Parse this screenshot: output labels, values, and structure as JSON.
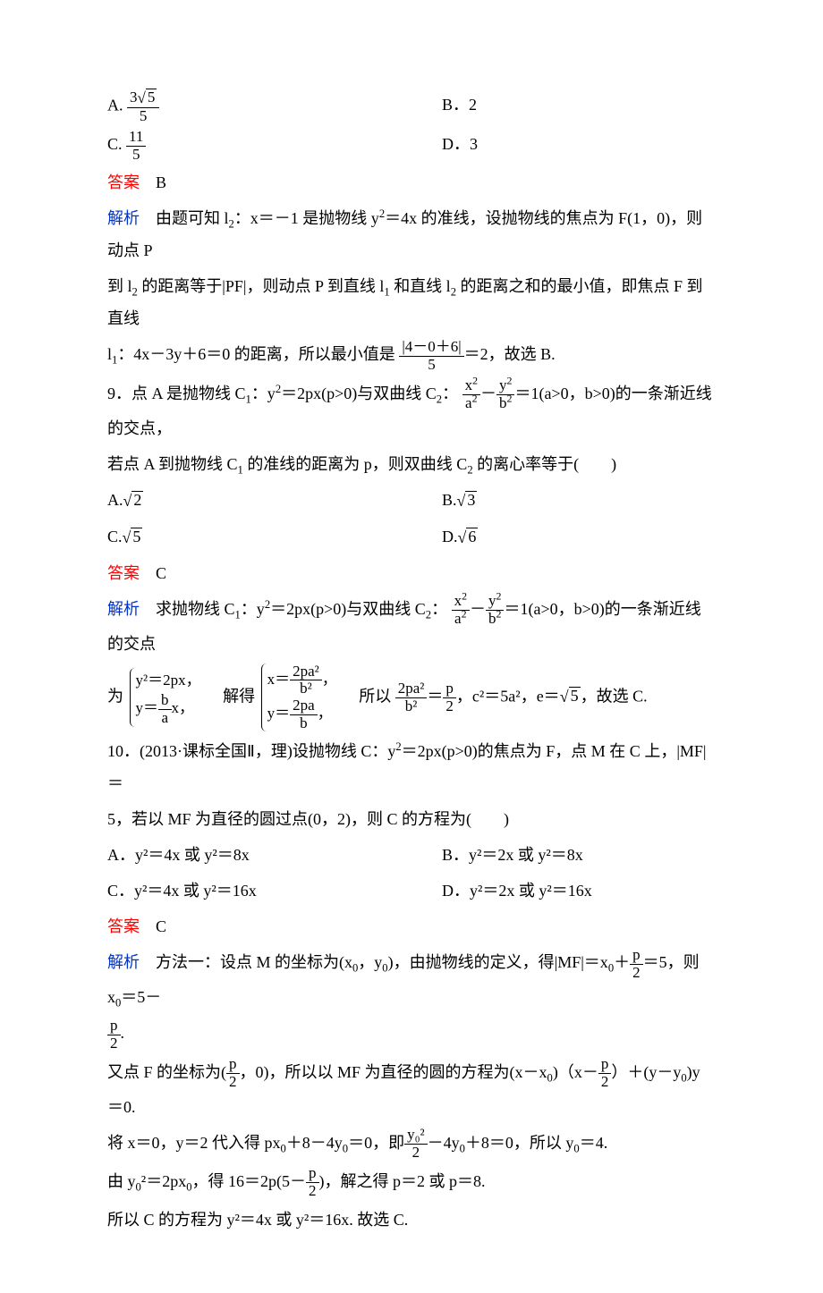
{
  "q8": {
    "opts": {
      "A_pre": "A.",
      "A_num_a": "3",
      "A_num_b": "5",
      "A_den": "5",
      "B": "B．2",
      "C_pre": "C.",
      "C_num": "11",
      "C_den": "5",
      "D": "D．3"
    },
    "ans_label": "答案",
    "ans": "B",
    "ana_label": "解析",
    "ana_p1a": "由题可知 l",
    "ana_p1b": "：x＝－1 是抛物线 y",
    "ana_p1c": "＝4x 的准线，设抛物线的焦点为 F(1，0)，则动点 P",
    "ana_p2a": "到 l",
    "ana_p2b": " 的距离等于|PF|，则动点 P 到直线 l",
    "ana_p2c": " 和直线 l",
    "ana_p2d": " 的距离之和的最小值，即焦点 F 到直线",
    "ana_p3a": "l",
    "ana_p3b": "：4x－3y＋6＝0 的距离，所以最小值是",
    "ana_frac_num": "|4－0＋6|",
    "ana_frac_den": "5",
    "ana_p3c": "＝2，故选 B."
  },
  "q9": {
    "stem_a": "9．点 A 是抛物线 C",
    "stem_b": "：y",
    "stem_c": "＝2px(p>0)与双曲线 C",
    "stem_d": "：",
    "h_xn": "x",
    "h_xd": "a",
    "h_yn": "y",
    "h_yd": "b",
    "stem_e": "＝1(a>0，b>0)的一条渐近线的交点，",
    "stem2a": "若点 A 到抛物线 C",
    "stem2b": " 的准线的距离为 p，则双曲线 C",
    "stem2c": " 的离心率等于(　　)",
    "opts": {
      "A_pre": "A.",
      "A_v": "2",
      "B_pre": "B.",
      "B_v": "3",
      "C_pre": "C.",
      "C_v": "5",
      "D_pre": "D.",
      "D_v": "6"
    },
    "ans_label": "答案",
    "ans": "C",
    "ana_label": "解析",
    "ana_p1a": "求抛物线 C",
    "ana_p1b": "：y",
    "ana_p1c": "＝2px(p>0)与双曲线 C",
    "ana_p1d": "：",
    "ana_p1e": "＝1(a>0，b>0)的一条渐近线的交点",
    "ana_p2_pre": "为",
    "brace1_l1": "y²＝2px，",
    "brace1_l2_a": "y＝",
    "brace1_l2_num": "b",
    "brace1_l2_den": "a",
    "brace1_l2_b": "x，",
    "ana_p2_mid": "解得",
    "brace2_l1_a": "x＝",
    "brace2_l1_num": "2pa²",
    "brace2_l1_den": "b²",
    "brace2_l1_b": "，",
    "brace2_l2_a": "y＝",
    "brace2_l2_num": "2pa",
    "brace2_l2_den": "b",
    "brace2_l2_b": "，",
    "ana_p2_c": "所以",
    "so_fl_num": "2pa²",
    "so_fl_den": "b²",
    "so_eq": "＝",
    "so_fr_num": "p",
    "so_fr_den": "2",
    "ana_p2_d": "，c²＝5a²，e＝",
    "ana_p2_sqrt": "5",
    "ana_p2_e": "，故选 C."
  },
  "q10": {
    "stem_a": "10．(2013·课标全国Ⅱ，理)设抛物线 C：y",
    "stem_b": "＝2px(p>0)的焦点为 F，点 M 在 C 上，|MF|＝",
    "stem2": "5，若以 MF 为直径的圆过点(0，2)，则 C 的方程为(　　)",
    "opts": {
      "A": "A．y²＝4x 或 y²＝8x",
      "B": "B．y²＝2x 或 y²＝8x",
      "C": "C．y²＝4x 或 y²＝16x",
      "D": "D．y²＝2x 或 y²＝16x"
    },
    "ans_label": "答案",
    "ans": "C",
    "ana_label": "解析",
    "m1a": "方法一：设点 M 的坐标为(x",
    "m1b": "，y",
    "m1c": ")，由抛物线的定义，得|MF|＝x",
    "m1d": "＋",
    "m1_frac_num": "p",
    "m1_frac_den": "2",
    "m1e": "＝5，则 x",
    "m1f": "＝5－",
    "m1g_num": "p",
    "m1g_den": "2",
    "m1h": ".",
    "m2a": "又点 F 的坐标为(",
    "m2_frac_num": "p",
    "m2_frac_den": "2",
    "m2b": "，0)，所以以 MF 为直径的圆的方程为(x－x",
    "m2c": ")（x－",
    "m2d_num": "p",
    "m2d_den": "2",
    "m2e": "）＋(y－y",
    "m2f": ")y＝0.",
    "m3a": "将 x＝0，y＝2 代入得 px",
    "m3b": "＋8－4y",
    "m3c": "＝0，即",
    "m3_frac_num": "y₀²",
    "m3_frac_den": "2",
    "m3d": "－4y",
    "m3e": "＋8＝0，所以 y",
    "m3f": "＝4.",
    "m4a": "由 y",
    "m4b": "²＝2px",
    "m4c": "，得 16＝2p(5－",
    "m4_frac_num": "p",
    "m4_frac_den": "2",
    "m4d": ")，解之得 p＝2 或 p＝8.",
    "m5": "所以 C 的方程为 y²＝4x 或 y²＝16x. 故选 C."
  }
}
